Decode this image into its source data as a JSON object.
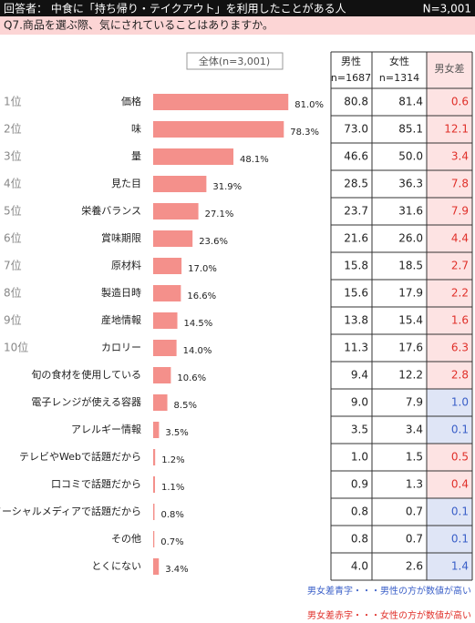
{
  "chart_data": {
    "type": "bar",
    "title": "回答者： 中食に「持ち帰り・テイクアウト」を利用したことがある人",
    "n_label": "N=3,001",
    "subtitle": "Q7.商品を選ぶ際、気にされていることはありますか。",
    "legend_label": "全体(n=3,001)",
    "ranks": [
      "1位",
      "2位",
      "3位",
      "4位",
      "5位",
      "6位",
      "7位",
      "8位",
      "9位",
      "10位",
      null,
      null,
      null,
      null,
      null,
      null,
      null,
      null
    ],
    "categories": [
      "価格",
      "味",
      "量",
      "見た目",
      "栄養バランス",
      "賞味期限",
      "原材料",
      "製造日時",
      "産地情報",
      "カロリー",
      "旬の食材を使用している",
      "電子レンジが使える容器",
      "アレルギー情報",
      "テレビやWebで話題だから",
      "口コミで話題だから",
      "ソーシャルメディアで話題だから",
      "その他",
      "とくにない"
    ],
    "values": [
      81.0,
      78.3,
      48.1,
      31.9,
      27.1,
      23.6,
      17.0,
      16.6,
      14.5,
      14.0,
      10.6,
      8.5,
      3.5,
      1.2,
      1.1,
      0.8,
      0.7,
      3.4
    ],
    "value_labels": [
      "81.0%",
      "78.3%",
      "48.1%",
      "31.9%",
      "27.1%",
      "23.6%",
      "17.0%",
      "16.6%",
      "14.5%",
      "14.0%",
      "10.6%",
      "8.5%",
      "3.5%",
      "1.2%",
      "1.1%",
      "0.8%",
      "0.7%",
      "3.4%"
    ],
    "color": "#f4908b",
    "xlim": [
      0,
      100
    ],
    "table": {
      "male_header": [
        "男性",
        "n=1687"
      ],
      "female_header": [
        "女性",
        "n=1314"
      ],
      "diff_header": "男女差",
      "male": [
        "80.8",
        "73.0",
        "46.6",
        "28.5",
        "23.7",
        "21.6",
        "15.8",
        "15.6",
        "13.8",
        "11.3",
        "9.4",
        "9.0",
        "3.5",
        "1.0",
        "0.9",
        "0.8",
        "0.8",
        "4.0"
      ],
      "female": [
        "81.4",
        "85.1",
        "50.0",
        "36.3",
        "31.6",
        "26.0",
        "18.5",
        "17.9",
        "15.4",
        "17.6",
        "12.2",
        "7.9",
        "3.4",
        "1.5",
        "1.3",
        "0.7",
        "0.7",
        "2.6"
      ],
      "diff": [
        "0.6",
        "12.1",
        "3.4",
        "7.8",
        "7.9",
        "4.4",
        "2.7",
        "2.2",
        "1.6",
        "6.3",
        "2.8",
        "1.0",
        "0.1",
        "0.5",
        "0.4",
        "0.1",
        "0.1",
        "1.4"
      ],
      "diff_higher": [
        "female",
        "female",
        "female",
        "female",
        "female",
        "female",
        "female",
        "female",
        "female",
        "female",
        "female",
        "male",
        "male",
        "female",
        "female",
        "male",
        "male",
        "male"
      ]
    },
    "footnotes": [
      {
        "text": "男女差青字・・・男性の方が数値が高い",
        "higher": "male"
      },
      {
        "text": "男女差赤字・・・女性の方が数値が高い",
        "higher": "female"
      }
    ]
  }
}
